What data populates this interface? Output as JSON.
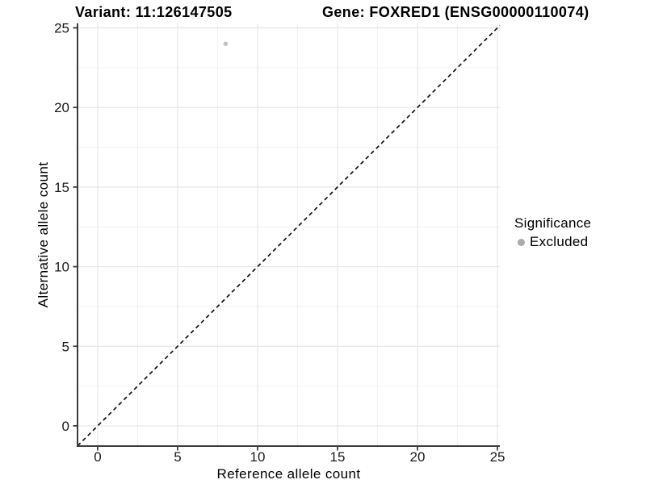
{
  "titles": {
    "variant": "Variant: 11:126147505",
    "gene": "Gene: FOXRED1 (ENSG00000110074)"
  },
  "legend": {
    "title": "Significance",
    "position": "right",
    "items": [
      {
        "label": "Excluded",
        "color": "#ababab"
      }
    ]
  },
  "chart_data": {
    "type": "scatter",
    "title_left": "Variant: 11:126147505",
    "title_right": "Gene: FOXRED1 (ENSG00000110074)",
    "xlabel": "Reference allele count",
    "ylabel": "Alternative allele count",
    "x_ticks": [
      0,
      5,
      10,
      15,
      20,
      25
    ],
    "y_ticks": [
      0,
      5,
      10,
      15,
      20,
      25
    ],
    "x_minor": [
      2.5,
      7.5,
      12.5,
      17.5,
      22.5
    ],
    "y_minor": [
      2.5,
      7.5,
      12.5,
      17.5,
      22.5
    ],
    "xlim": [
      -1.26,
      25.15
    ],
    "ylim": [
      -1.27,
      25.28
    ],
    "grid": true,
    "legend_position": "right",
    "points": [
      {
        "x": 8,
        "y": 24,
        "significance": "Excluded"
      }
    ],
    "identity_line": {
      "type": "dashed",
      "equation": "y = x"
    },
    "colors": {
      "point": "#c2c2c2",
      "legend_key": "#ababab",
      "axis_line": "#3c3c3c",
      "tick_label": "#1a1a1a",
      "grid_major": "#e6e6e6",
      "grid_minor": "#f2f2f2",
      "identity_line": "#111111"
    }
  }
}
